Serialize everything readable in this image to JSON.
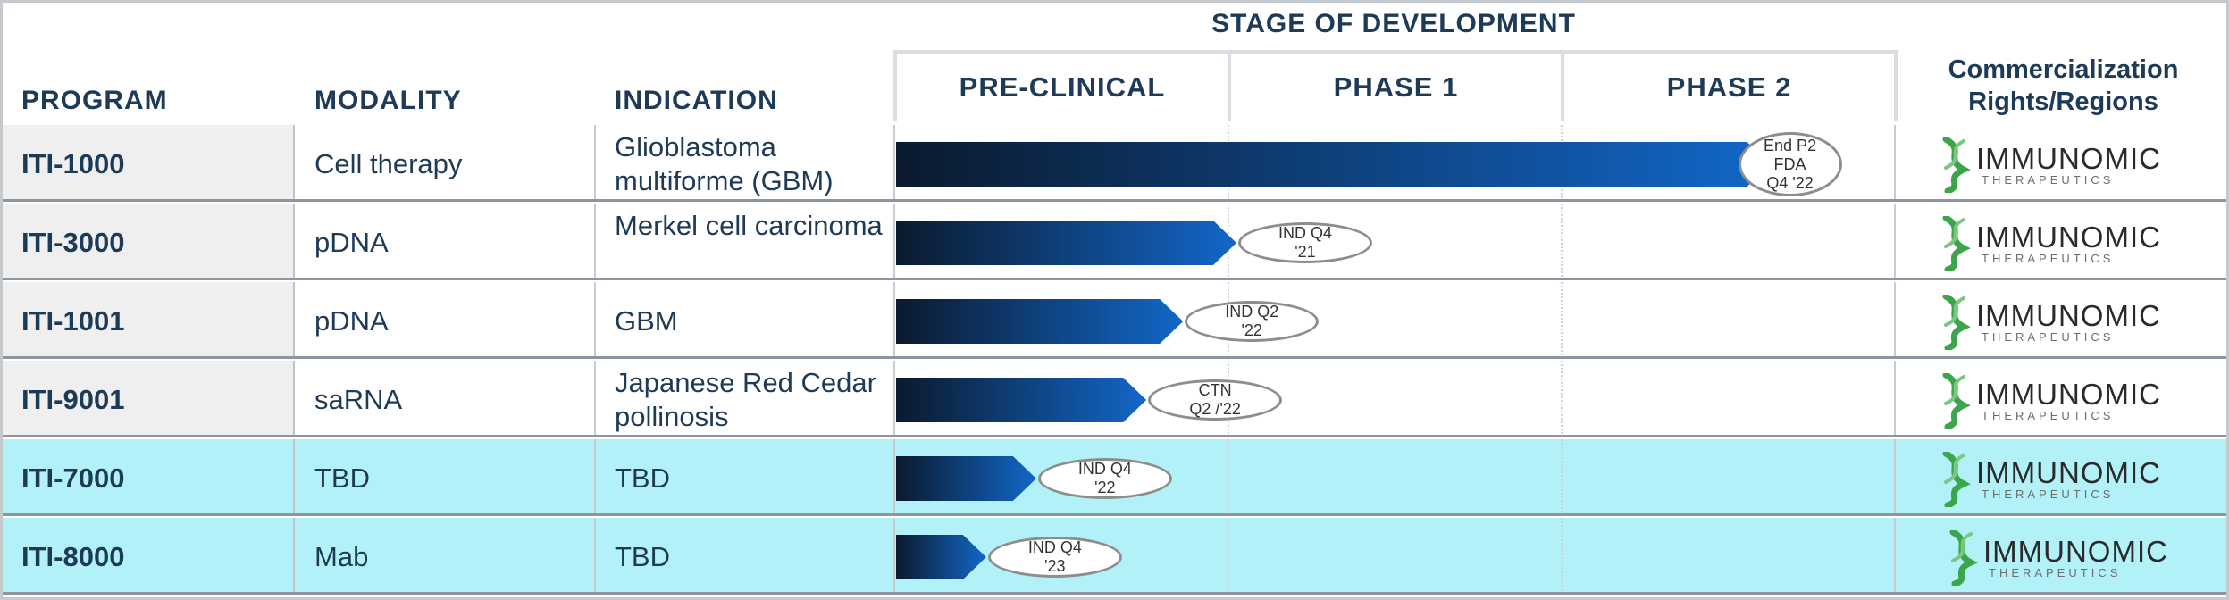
{
  "headers": {
    "program": "PROGRAM",
    "modality": "MODALITY",
    "indication": "INDICATION",
    "stage_title": "STAGE OF DEVELOPMENT",
    "stages": [
      "PRE-CLINICAL",
      "PHASE 1",
      "PHASE 2"
    ],
    "commercialization_line1": "Commercialization",
    "commercialization_line2": "Rights/Regions"
  },
  "rows": [
    {
      "program": "ITI-1000",
      "modality": "Cell therapy",
      "indication": "Glioblastoma multiforme  (GBM)",
      "progress_stages": 2.62,
      "milestone": "End P2\nFDA\nQ4 '22",
      "partner": "IMMUNOMIC",
      "partner_sub": "THERAPEUTICS",
      "highlight": false
    },
    {
      "program": "ITI-3000",
      "modality": "pDNA",
      "indication": "Merkel cell carcinoma",
      "progress_stages": 1.02,
      "milestone": "IND  Q4\n'21",
      "partner": "IMMUNOMIC",
      "partner_sub": "THERAPEUTICS",
      "highlight": false
    },
    {
      "program": "ITI-1001",
      "modality": "pDNA",
      "indication": "GBM",
      "progress_stages": 0.86,
      "milestone": "IND  Q2\n'22",
      "partner": "IMMUNOMIC",
      "partner_sub": "THERAPEUTICS",
      "highlight": false
    },
    {
      "program": "ITI-9001",
      "modality": "saRNA",
      "indication": "Japanese Red Cedar pollinosis",
      "progress_stages": 0.75,
      "milestone": "CTN\nQ2 /'22",
      "partner": "IMMUNOMIC",
      "partner_sub": "THERAPEUTICS",
      "highlight": false
    },
    {
      "program": "ITI-7000",
      "modality": "TBD",
      "indication": "TBD",
      "progress_stages": 0.42,
      "milestone": "IND  Q4\n'22",
      "partner": "IMMUNOMIC",
      "partner_sub": "THERAPEUTICS",
      "highlight": true
    },
    {
      "program": "ITI-8000",
      "modality": "Mab",
      "indication": "TBD",
      "progress_stages": 0.27,
      "milestone": "IND  Q4\n'23",
      "partner": "IMMUNOMIC",
      "partner_sub": "THERAPEUTICS",
      "highlight": true
    }
  ],
  "colors": {
    "header_text": "#1d3a57",
    "bar_dark": "#0b1a2e",
    "bar_light": "#1267c9",
    "highlight_row": "#b3f1f8",
    "logo_green": "#3aa54a"
  },
  "icons": {
    "logo": "dna-helix-icon"
  }
}
